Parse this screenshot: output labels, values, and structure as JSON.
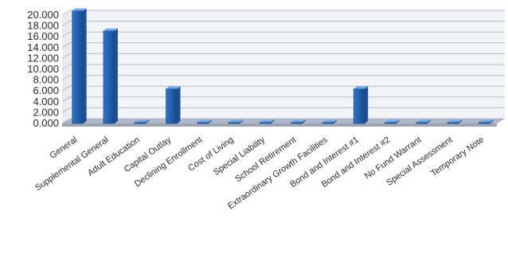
{
  "chart_data": {
    "type": "bar",
    "style": "3d-column",
    "categories": [
      "General",
      "Supplemental General",
      "Adult Education",
      "Capital Outlay",
      "Declining Enrollment",
      "Cost of Living",
      "Special Liability",
      "School Retirement",
      "Extraordinary Growth Facilities",
      "Bond and Interest #1",
      "Bond and Interest #2",
      "No Fund Warrant",
      "Special Assessment",
      "Temporary Note"
    ],
    "values": [
      20.8,
      17.1,
      0.0,
      6.4,
      0.0,
      0.0,
      0.0,
      0.0,
      0.0,
      6.4,
      0.0,
      0.0,
      0.0,
      0.0
    ],
    "y_ticks": [
      "0.000",
      "2.000",
      "4.000",
      "6.000",
      "8.000",
      "10.000",
      "12.000",
      "14.000",
      "16.000",
      "18.000",
      "20.000"
    ],
    "ylim": [
      0,
      20
    ],
    "y_step": 2,
    "grid": true,
    "legend": "none",
    "title": "",
    "xlabel": "",
    "ylabel": "",
    "colors": {
      "bar_front": "#2f75c7",
      "bar_front_dark": "#17498e",
      "bar_side": "#1c4f95",
      "bar_top": "#72a8ea",
      "floor": "#aeb8c8",
      "back_wall": "#f3f4f8",
      "grid": "#b7bdc8",
      "axis_text": "#2a2a2a"
    }
  }
}
